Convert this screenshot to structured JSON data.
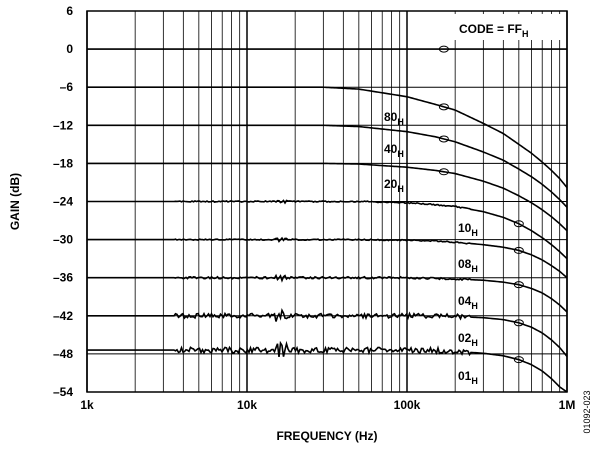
{
  "chart_data": {
    "type": "line",
    "title": "",
    "xlabel": "FREQUENCY (Hz)",
    "ylabel": "GAIN (dB)",
    "x_scale": "log",
    "xlim": [
      1000,
      1000000
    ],
    "ylim": [
      -54,
      6
    ],
    "grid": true,
    "x_ticks": [
      {
        "value": 1000,
        "label": "1k"
      },
      {
        "value": 10000,
        "label": "10k"
      },
      {
        "value": 100000,
        "label": "100k"
      },
      {
        "value": 1000000,
        "label": "1M"
      }
    ],
    "y_ticks": [
      {
        "value": 6,
        "label": "6"
      },
      {
        "value": 0,
        "label": "0"
      },
      {
        "value": -6,
        "label": "–6"
      },
      {
        "value": -12,
        "label": "–12"
      },
      {
        "value": -18,
        "label": "–18"
      },
      {
        "value": -24,
        "label": "–24"
      },
      {
        "value": -30,
        "label": "–30"
      },
      {
        "value": -36,
        "label": "–36"
      },
      {
        "value": -42,
        "label": "–42"
      },
      {
        "value": -48,
        "label": "–48"
      },
      {
        "value": -54,
        "label": "–54"
      }
    ],
    "annotation": {
      "text": "CODE = FF",
      "subscript": "H"
    },
    "figure_id": "01092-023",
    "x": [
      1000,
      10000,
      20000,
      30000,
      50000,
      100000,
      150000,
      200000,
      300000,
      400000,
      500000,
      600000,
      700000,
      800000,
      900000,
      1000000
    ],
    "series": [
      {
        "name": "FF",
        "code": "FF",
        "values": [
          0,
          0,
          0,
          0,
          0,
          0,
          0,
          0,
          0,
          0,
          0,
          0,
          0,
          0,
          0,
          0
        ]
      },
      {
        "name": "80",
        "code": "80",
        "values": [
          -6,
          -6,
          -6,
          -6,
          -6.3,
          -7.5,
          -8.7,
          -9.6,
          -11.7,
          -13.3,
          -15,
          -16.4,
          -17.8,
          -19.1,
          -20.4,
          -21.8
        ]
      },
      {
        "name": "40",
        "code": "40",
        "values": [
          -12,
          -12,
          -12,
          -12,
          -12.2,
          -13,
          -13.8,
          -14.6,
          -16.2,
          -17.5,
          -18.9,
          -20.1,
          -21.3,
          -22.5,
          -23.7,
          -24.9
        ]
      },
      {
        "name": "20",
        "code": "20",
        "values": [
          -18,
          -18,
          -18,
          -18,
          -18.1,
          -18.6,
          -19.1,
          -19.6,
          -20.8,
          -21.9,
          -23.1,
          -24.2,
          -25.3,
          -26.4,
          -27.5,
          -28.6
        ]
      },
      {
        "name": "10",
        "code": "10",
        "values": [
          -24,
          -24,
          -24,
          -24,
          -24,
          -24.2,
          -24.5,
          -24.8,
          -25.6,
          -26.5,
          -27.5,
          -28.6,
          -29.7,
          -30.8,
          -31.9,
          -33
        ]
      },
      {
        "name": "08",
        "code": "08",
        "values": [
          -30,
          -30,
          -30,
          -30,
          -30,
          -30.1,
          -30.2,
          -30.4,
          -30.8,
          -31.2,
          -31.7,
          -32.4,
          -33.2,
          -34.1,
          -35,
          -36
        ]
      },
      {
        "name": "04",
        "code": "04",
        "values": [
          -36,
          -36,
          -36,
          -36,
          -36,
          -36,
          -36.1,
          -36.2,
          -36.4,
          -36.7,
          -37.1,
          -37.7,
          -38.4,
          -39.3,
          -40.3,
          -41.4
        ]
      },
      {
        "name": "02",
        "code": "02",
        "values": [
          -42,
          -42,
          -42,
          -42,
          -42,
          -42,
          -42,
          -42.1,
          -42.3,
          -42.6,
          -43.1,
          -43.8,
          -44.7,
          -45.8,
          -47,
          -48.4
        ]
      },
      {
        "name": "01",
        "code": "01",
        "values": [
          -47.4,
          -47.4,
          -47.4,
          -47.4,
          -47.4,
          -47.4,
          -47.5,
          -47.6,
          -47.9,
          -48.3,
          -48.9,
          -49.7,
          -50.7,
          -51.9,
          -53.2,
          -54
        ]
      }
    ],
    "curve_labels": [
      {
        "text": "80",
        "subscript": "H"
      },
      {
        "text": "40",
        "subscript": "H"
      },
      {
        "text": "20",
        "subscript": "H"
      },
      {
        "text": "10",
        "subscript": "H"
      },
      {
        "text": "08",
        "subscript": "H"
      },
      {
        "text": "04",
        "subscript": "H"
      },
      {
        "text": "02",
        "subscript": "H"
      },
      {
        "text": "01",
        "subscript": "H"
      }
    ]
  }
}
